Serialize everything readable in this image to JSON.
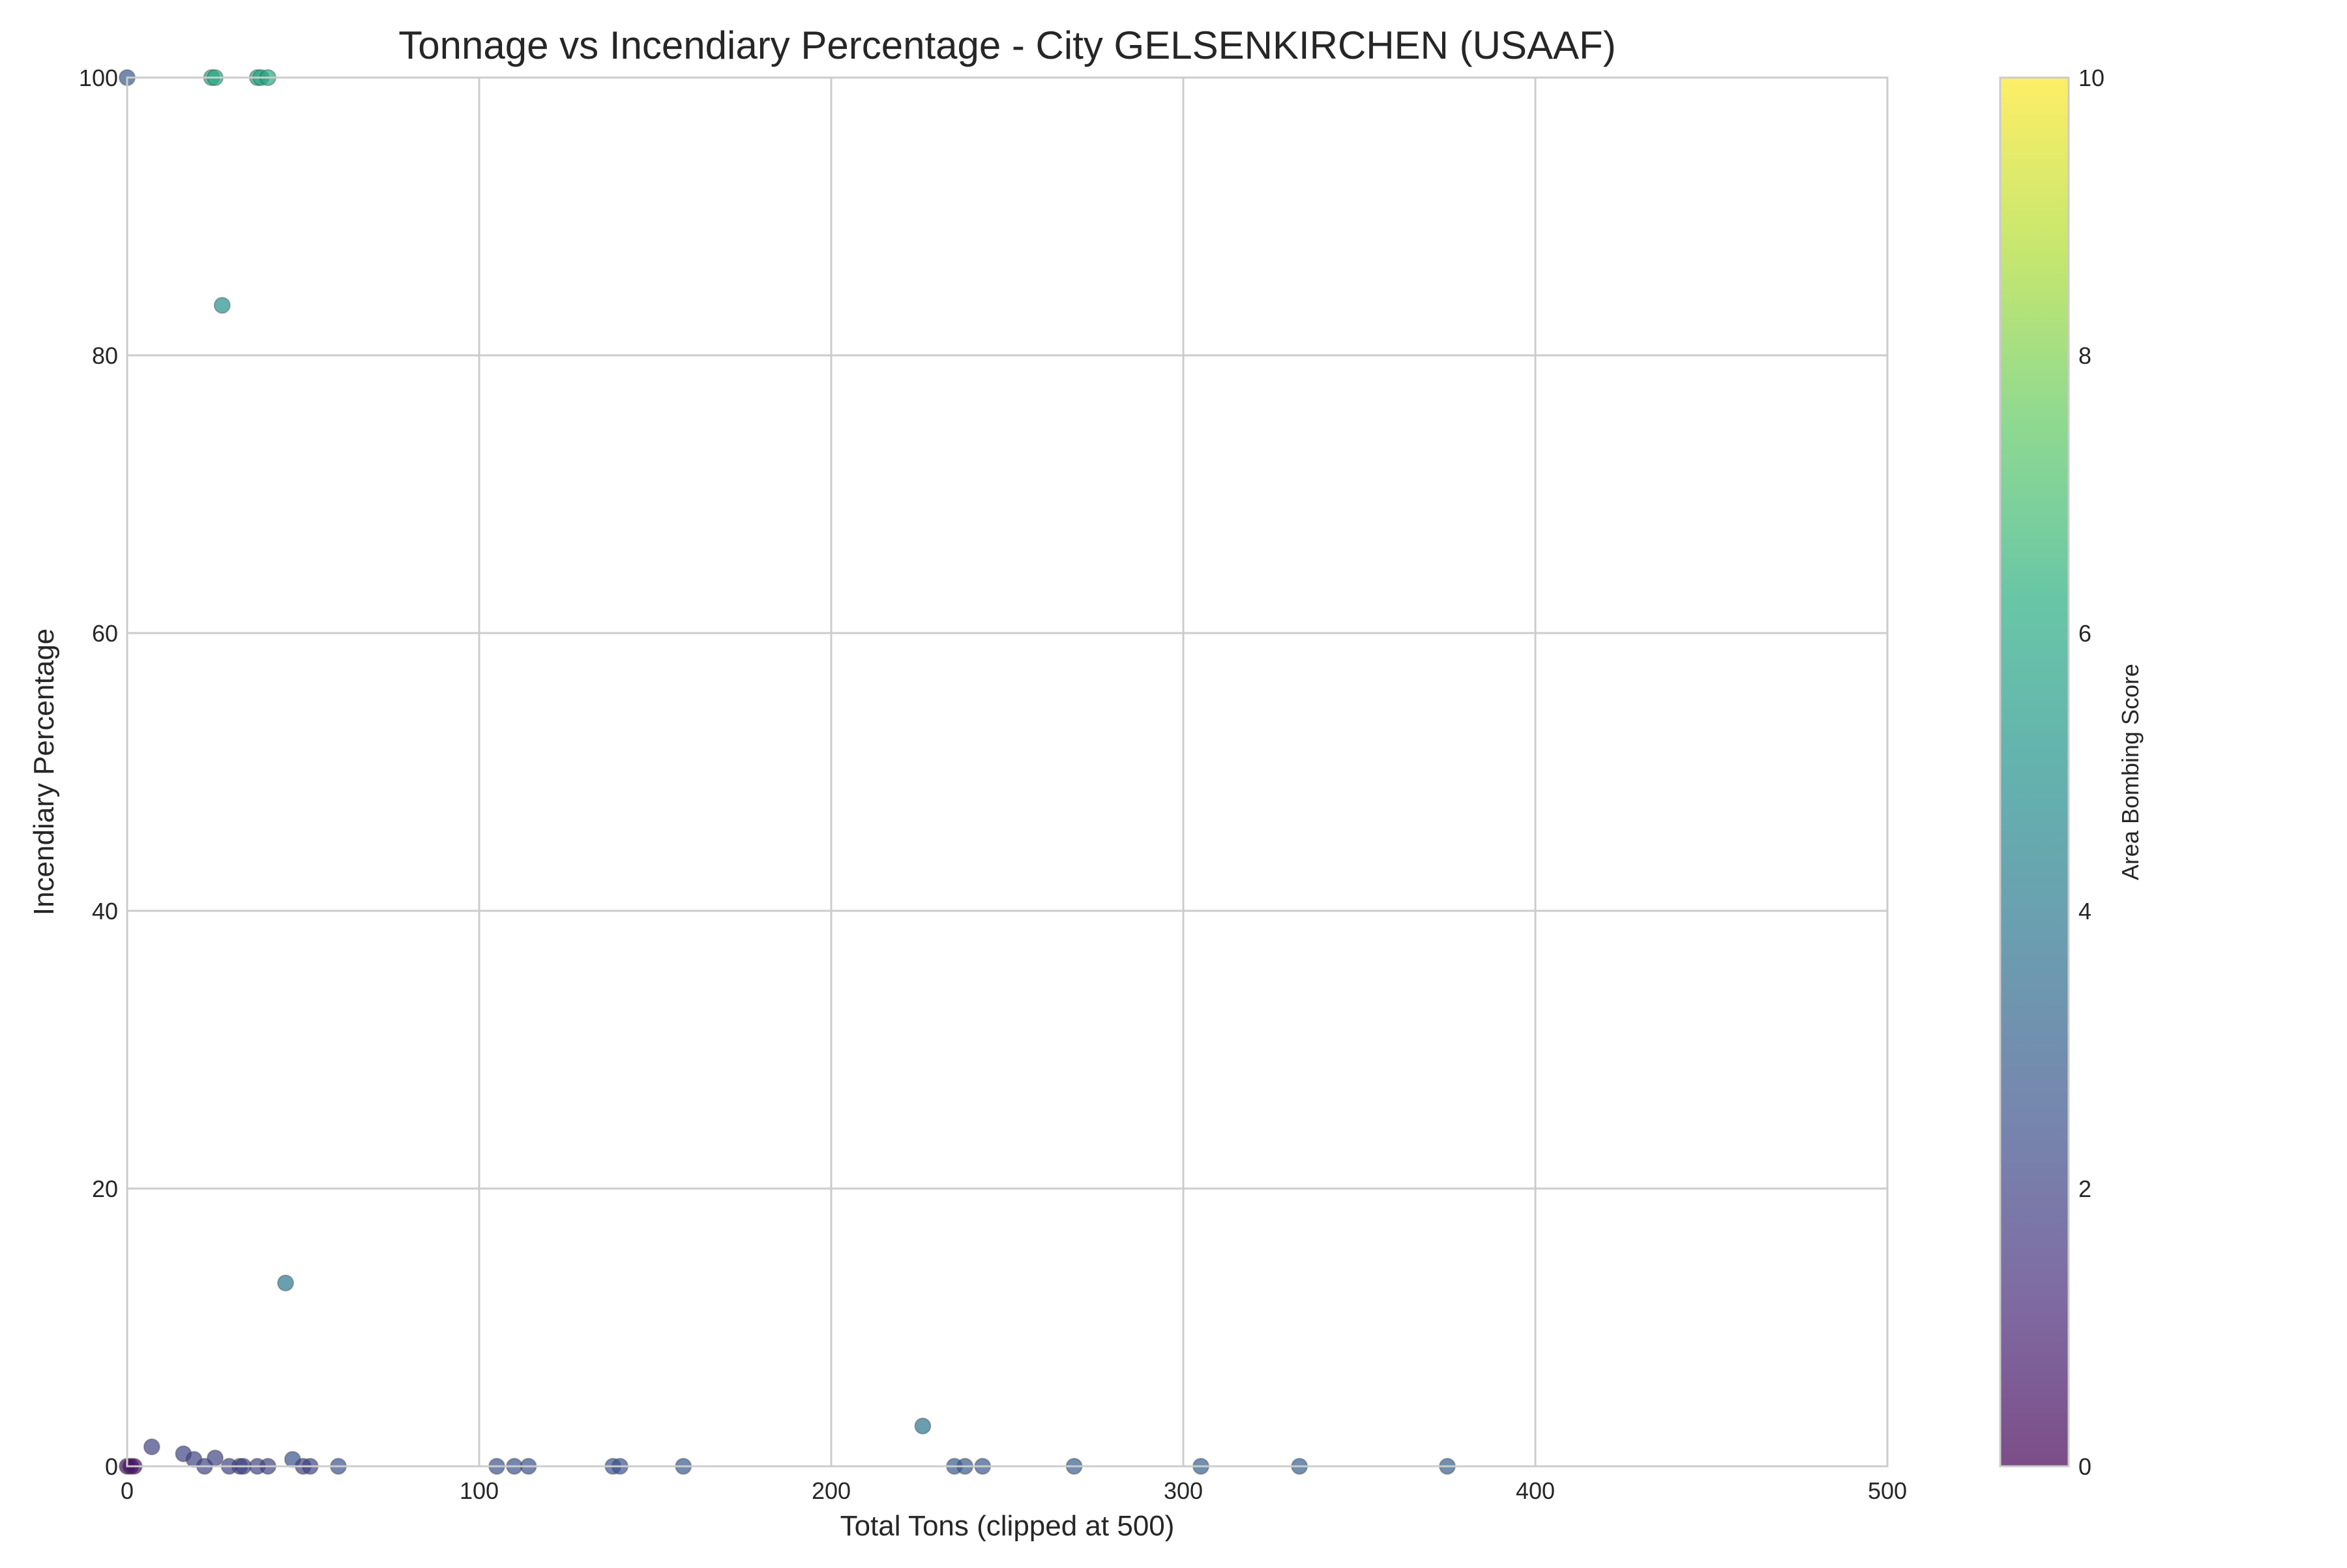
{
  "chart_data": {
    "type": "scatter",
    "title": "Tonnage vs Incendiary Percentage - City GELSENKIRCHEN (USAAF)",
    "xlabel": "Total Tons (clipped at 500)",
    "ylabel": "Incendiary Percentage",
    "xlim": [
      0,
      500
    ],
    "ylim": [
      0,
      100
    ],
    "x_ticks": [
      0,
      100,
      200,
      300,
      400,
      500
    ],
    "y_ticks": [
      0,
      20,
      40,
      60,
      80,
      100
    ],
    "grid": true,
    "colorbar": {
      "label": "Area Bombing Score",
      "colormap": "viridis",
      "range": [
        0,
        10
      ],
      "ticks": [
        0,
        2,
        4,
        6,
        8,
        10
      ]
    },
    "points": [
      {
        "x": 0,
        "y": 100,
        "c": 2.8
      },
      {
        "x": 24,
        "y": 100,
        "c": 6.0
      },
      {
        "x": 25,
        "y": 100,
        "c": 6.0
      },
      {
        "x": 37,
        "y": 100,
        "c": 6.0
      },
      {
        "x": 38,
        "y": 100,
        "c": 6.0
      },
      {
        "x": 40,
        "y": 100,
        "c": 6.0
      },
      {
        "x": 27,
        "y": 83.6,
        "c": 5.0
      },
      {
        "x": 45,
        "y": 13.2,
        "c": 4.0
      },
      {
        "x": 226,
        "y": 2.9,
        "c": 3.8
      },
      {
        "x": 7,
        "y": 1.4,
        "c": 2.0
      },
      {
        "x": 16,
        "y": 0.9,
        "c": 2.0
      },
      {
        "x": 19,
        "y": 0.5,
        "c": 2.0
      },
      {
        "x": 25,
        "y": 0.6,
        "c": 2.0
      },
      {
        "x": 47,
        "y": 0.5,
        "c": 2.5
      },
      {
        "x": 0,
        "y": 0,
        "c": 0.5
      },
      {
        "x": 1,
        "y": 0,
        "c": 0.5
      },
      {
        "x": 2,
        "y": 0,
        "c": 0.5
      },
      {
        "x": 22,
        "y": 0,
        "c": 2.0
      },
      {
        "x": 29,
        "y": 0,
        "c": 2.0
      },
      {
        "x": 32,
        "y": 0,
        "c": 2.0
      },
      {
        "x": 33,
        "y": 0,
        "c": 2.0
      },
      {
        "x": 37,
        "y": 0,
        "c": 2.0
      },
      {
        "x": 40,
        "y": 0,
        "c": 2.0
      },
      {
        "x": 50,
        "y": 0,
        "c": 2.0
      },
      {
        "x": 52,
        "y": 0,
        "c": 2.0
      },
      {
        "x": 60,
        "y": 0,
        "c": 2.5
      },
      {
        "x": 105,
        "y": 0,
        "c": 2.5
      },
      {
        "x": 110,
        "y": 0,
        "c": 2.5
      },
      {
        "x": 114,
        "y": 0,
        "c": 2.5
      },
      {
        "x": 138,
        "y": 0,
        "c": 2.5
      },
      {
        "x": 140,
        "y": 0,
        "c": 2.5
      },
      {
        "x": 158,
        "y": 0,
        "c": 2.8
      },
      {
        "x": 235,
        "y": 0,
        "c": 2.8
      },
      {
        "x": 238,
        "y": 0,
        "c": 2.8
      },
      {
        "x": 243,
        "y": 0,
        "c": 2.8
      },
      {
        "x": 269,
        "y": 0,
        "c": 3.0
      },
      {
        "x": 305,
        "y": 0,
        "c": 3.0
      },
      {
        "x": 333,
        "y": 0,
        "c": 3.0
      },
      {
        "x": 375,
        "y": 0,
        "c": 3.0
      }
    ]
  }
}
